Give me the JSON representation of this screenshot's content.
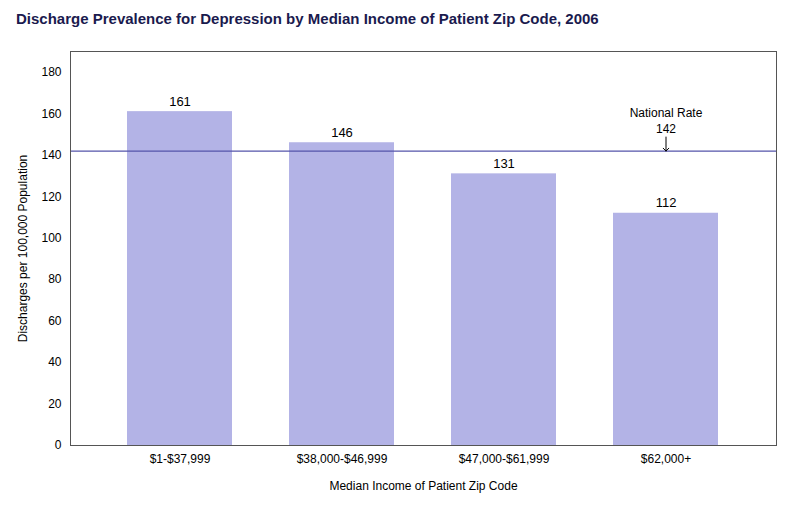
{
  "chart_data": {
    "type": "bar",
    "title": "Discharge Prevalence for Depression by Median Income of Patient Zip Code, 2006",
    "categories": [
      "$1-$37,999",
      "$38,000-$46,999",
      "$47,000-$61,999",
      "$62,000+"
    ],
    "values": [
      161,
      146,
      131,
      112
    ],
    "color": "#b3b3e6",
    "xlabel": "Median Income of Patient Zip Code",
    "ylabel": "Discharges per 100,000 Population",
    "ylim": [
      0,
      190
    ],
    "yticks": [
      0,
      20,
      40,
      60,
      80,
      100,
      120,
      140,
      160,
      180
    ],
    "grid": false,
    "data_labels": true,
    "annotations": [
      {
        "text": "National Rate\n142",
        "y": 142,
        "color": "#5555aa"
      }
    ]
  }
}
